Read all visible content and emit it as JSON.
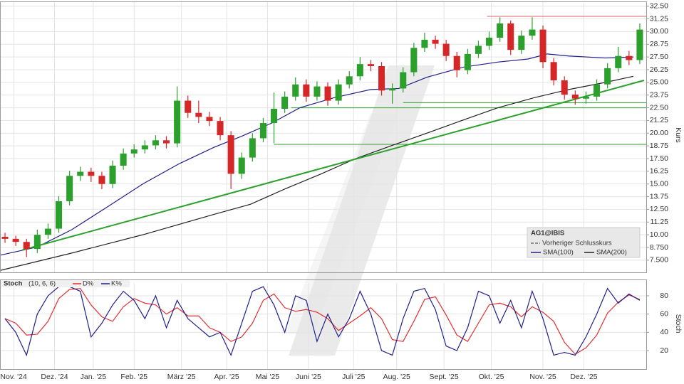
{
  "chart_data": [
    {
      "type": "candlestick",
      "title": "AG1@IBIS",
      "y_label": "Kurs",
      "legend": "bottom-right",
      "reference_name": "Vorheriger Schlusskurs",
      "up_color": "#2ca02c",
      "down_color": "#d62728",
      "grid": true,
      "x": [
        2,
        7,
        12,
        17,
        22,
        27,
        32,
        37,
        42,
        47,
        52,
        57,
        62,
        67,
        72,
        77,
        82,
        87,
        92,
        97,
        102,
        107,
        112,
        117,
        122,
        127,
        132,
        137,
        142,
        147,
        152,
        157,
        162,
        167,
        172,
        177,
        182,
        187,
        192,
        197,
        202,
        207,
        212,
        217,
        222,
        227,
        232,
        237,
        242,
        247,
        252,
        257,
        262,
        267,
        272,
        277,
        282,
        287,
        292,
        297
      ],
      "ohlc": [
        [
          9.8,
          10.2,
          9.2,
          9.6
        ],
        [
          9.6,
          9.9,
          8.9,
          9.3
        ],
        [
          9.3,
          9.6,
          7.8,
          8.6
        ],
        [
          8.6,
          10.5,
          8.2,
          10.0
        ],
        [
          10.0,
          11.1,
          9.6,
          10.6
        ],
        [
          10.6,
          13.8,
          10.2,
          13.3
        ],
        [
          13.3,
          16.3,
          12.9,
          15.8
        ],
        [
          15.8,
          16.7,
          15.3,
          16.2
        ],
        [
          16.2,
          16.6,
          15.2,
          15.8
        ],
        [
          15.8,
          16.2,
          14.5,
          15.0
        ],
        [
          15.0,
          17.3,
          14.6,
          16.8
        ],
        [
          16.8,
          18.5,
          16.4,
          18.0
        ],
        [
          18.0,
          18.9,
          17.6,
          18.4
        ],
        [
          18.4,
          19.3,
          18.0,
          18.8
        ],
        [
          18.8,
          19.8,
          18.4,
          19.3
        ],
        [
          19.3,
          19.7,
          18.5,
          19.0
        ],
        [
          19.0,
          24.6,
          18.6,
          23.2
        ],
        [
          23.2,
          23.7,
          21.5,
          22.0
        ],
        [
          22.0,
          23.2,
          21.0,
          21.6
        ],
        [
          21.6,
          22.1,
          20.7,
          21.2
        ],
        [
          21.2,
          21.6,
          19.3,
          19.8
        ],
        [
          19.8,
          20.2,
          14.5,
          16.0
        ],
        [
          16.0,
          18.1,
          15.5,
          17.6
        ],
        [
          17.6,
          20.0,
          17.2,
          19.5
        ],
        [
          19.5,
          21.5,
          19.1,
          21.0
        ],
        [
          21.0,
          24.0,
          19.0,
          22.4
        ],
        [
          22.4,
          24.1,
          22.0,
          23.6
        ],
        [
          23.6,
          25.5,
          23.2,
          24.8
        ],
        [
          24.8,
          25.3,
          23.1,
          23.6
        ],
        [
          23.6,
          25.1,
          23.2,
          24.6
        ],
        [
          24.6,
          25.0,
          22.7,
          23.2
        ],
        [
          23.2,
          25.3,
          22.8,
          24.8
        ],
        [
          24.8,
          26.1,
          24.4,
          25.6
        ],
        [
          25.6,
          27.5,
          25.2,
          26.8
        ],
        [
          26.8,
          27.2,
          26.1,
          26.6
        ],
        [
          26.6,
          27.0,
          23.7,
          24.2
        ],
        [
          24.2,
          24.9,
          22.9,
          24.4
        ],
        [
          24.4,
          26.5,
          24.0,
          26.0
        ],
        [
          26.0,
          28.9,
          25.6,
          28.4
        ],
        [
          28.4,
          29.9,
          28.0,
          29.2
        ],
        [
          29.2,
          29.6,
          28.3,
          28.8
        ],
        [
          28.8,
          29.2,
          27.1,
          27.6
        ],
        [
          27.6,
          28.0,
          25.5,
          26.2
        ],
        [
          26.2,
          28.3,
          25.8,
          27.8
        ],
        [
          27.8,
          29.1,
          27.4,
          28.6
        ],
        [
          28.6,
          30.0,
          28.2,
          29.4
        ],
        [
          29.4,
          31.4,
          29.0,
          30.8
        ],
        [
          30.8,
          31.1,
          27.7,
          28.2
        ],
        [
          28.2,
          30.1,
          27.8,
          29.6
        ],
        [
          29.6,
          31.4,
          29.2,
          30.2
        ],
        [
          30.2,
          30.6,
          26.4,
          27.0
        ],
        [
          27.0,
          27.4,
          24.7,
          25.2
        ],
        [
          25.2,
          25.6,
          23.3,
          23.8
        ],
        [
          23.8,
          24.2,
          22.8,
          23.4
        ],
        [
          23.4,
          24.1,
          22.9,
          23.6
        ],
        [
          23.6,
          25.3,
          23.2,
          24.8
        ],
        [
          24.8,
          26.9,
          24.4,
          26.4
        ],
        [
          26.4,
          28.5,
          26.0,
          27.6
        ],
        [
          27.6,
          28.1,
          26.7,
          27.2
        ],
        [
          27.2,
          30.8,
          26.8,
          30.2
        ]
      ],
      "xlim": [
        0,
        300
      ],
      "ylim": [
        6.3,
        32.9
      ],
      "yticks": [
        {
          "value": 7.5,
          "label": "7.500"
        },
        {
          "value": 8.75,
          "label": "8.750"
        },
        {
          "value": 10,
          "label": "10.00"
        },
        {
          "value": 11.25,
          "label": "11.25"
        },
        {
          "value": 12.5,
          "label": "12.50"
        },
        {
          "value": 13.75,
          "label": "13.75"
        },
        {
          "value": 15,
          "label": "15.00"
        },
        {
          "value": 16.25,
          "label": "16.25"
        },
        {
          "value": 17.5,
          "label": "17.50"
        },
        {
          "value": 18.75,
          "label": "18.75"
        },
        {
          "value": 20,
          "label": "20.00"
        },
        {
          "value": 21.25,
          "label": "21.25"
        },
        {
          "value": 22.5,
          "label": "22.50"
        },
        {
          "value": 23.75,
          "label": "23.75"
        },
        {
          "value": 25,
          "label": "25.00"
        },
        {
          "value": 26.25,
          "label": "26.25"
        },
        {
          "value": 27.5,
          "label": "27.50"
        },
        {
          "value": 28.75,
          "label": "28.75"
        },
        {
          "value": 30,
          "label": "30.00"
        },
        {
          "value": 31.25,
          "label": "31.25"
        },
        {
          "value": 32.5,
          "label": "32.50"
        }
      ],
      "overlays": [
        {
          "name": "SMA(100)",
          "color": "#20208a",
          "x": [
            0,
            17,
            33,
            50,
            66,
            83,
            99,
            112,
            126,
            139,
            155,
            172,
            185,
            198,
            215,
            231,
            245,
            254,
            264,
            281,
            294
          ],
          "values": [
            8.0,
            8.8,
            10.5,
            12.8,
            15.0,
            17.0,
            18.6,
            19.7,
            21.0,
            22.5,
            23.5,
            24.3,
            24.4,
            25.5,
            26.5,
            27.0,
            27.3,
            27.8,
            27.6,
            27.4,
            27.5
          ]
        },
        {
          "name": "SMA(200)",
          "color": "#222222",
          "x": [
            0,
            33,
            66,
            99,
            116,
            132,
            149,
            165,
            182,
            198,
            215,
            231,
            248,
            264,
            281,
            294
          ],
          "values": [
            6.5,
            8.2,
            10.0,
            12.0,
            13.0,
            14.5,
            16.0,
            17.5,
            18.8,
            20.0,
            21.3,
            22.5,
            23.5,
            24.3,
            25.0,
            25.6
          ]
        }
      ],
      "trendline": {
        "color": "#2ca02c",
        "x": [
          10,
          299
        ],
        "values": [
          8.5,
          25.2
        ]
      },
      "hlines": [
        {
          "value": 31.5,
          "x0": 226,
          "color": "#e06060"
        },
        {
          "value": 23.0,
          "x0": 187,
          "color": "#2ca02c"
        },
        {
          "value": 22.5,
          "x0": 135,
          "color": "#2ca02c"
        },
        {
          "value": 18.9,
          "x0": 127,
          "color": "#2ca02c"
        }
      ]
    },
    {
      "type": "line",
      "title": "Stoch",
      "subtitle": "(10, 6, 6)",
      "y_label": "Stoch",
      "x": [
        2,
        7,
        12,
        17,
        22,
        27,
        32,
        37,
        42,
        47,
        52,
        57,
        62,
        67,
        72,
        77,
        82,
        87,
        92,
        97,
        102,
        107,
        112,
        117,
        122,
        127,
        132,
        137,
        142,
        147,
        152,
        157,
        162,
        167,
        172,
        177,
        182,
        187,
        192,
        197,
        202,
        207,
        212,
        217,
        222,
        227,
        232,
        237,
        242,
        247,
        252,
        257,
        262,
        267,
        272,
        277,
        282,
        287,
        292,
        297
      ],
      "series": [
        {
          "name": "D%",
          "color": "#e03030",
          "values": [
            55,
            50,
            37,
            38,
            52,
            77,
            87,
            88,
            70,
            57,
            52,
            68,
            77,
            72,
            70,
            60,
            67,
            58,
            58,
            45,
            40,
            30,
            35,
            50,
            75,
            82,
            67,
            63,
            65,
            62,
            55,
            42,
            50,
            58,
            67,
            55,
            32,
            30,
            52,
            76,
            79,
            59,
            37,
            30,
            50,
            70,
            72,
            68,
            57,
            68,
            62,
            52,
            29,
            16,
            23,
            37,
            61,
            73,
            81,
            76
          ]
        },
        {
          "name": "K%",
          "color": "#20208a",
          "values": [
            55,
            40,
            15,
            60,
            80,
            90,
            90,
            85,
            35,
            50,
            70,
            85,
            75,
            55,
            80,
            45,
            75,
            55,
            45,
            35,
            40,
            15,
            50,
            85,
            90,
            70,
            40,
            80,
            75,
            30,
            60,
            35,
            55,
            85,
            60,
            20,
            15,
            55,
            85,
            88,
            65,
            25,
            20,
            45,
            85,
            80,
            50,
            75,
            45,
            85,
            55,
            15,
            18,
            15,
            35,
            60,
            88,
            72,
            82,
            75
          ]
        }
      ],
      "xlim": [
        0,
        300
      ],
      "ylim": [
        -1,
        94
      ],
      "yticks": [
        20,
        40,
        60,
        80
      ],
      "grid": true,
      "xticks": [
        {
          "value": 6,
          "label": "Nov. '24"
        },
        {
          "value": 25,
          "label": "Dez. '24"
        },
        {
          "value": 43,
          "label": "Jan. '25"
        },
        {
          "value": 62,
          "label": "Feb. '25"
        },
        {
          "value": 84,
          "label": "März '25"
        },
        {
          "value": 105,
          "label": "Apr. '25"
        },
        {
          "value": 124,
          "label": "Mai '25"
        },
        {
          "value": 143,
          "label": "Juni '25"
        },
        {
          "value": 164,
          "label": "Juli '25"
        },
        {
          "value": 184,
          "label": "Aug. '25"
        },
        {
          "value": 206,
          "label": "Sept. '25"
        },
        {
          "value": 228,
          "label": "Okt. '25"
        },
        {
          "value": 252,
          "label": "Nov. '25"
        },
        {
          "value": 271,
          "label": "Dez. '25"
        }
      ]
    }
  ]
}
